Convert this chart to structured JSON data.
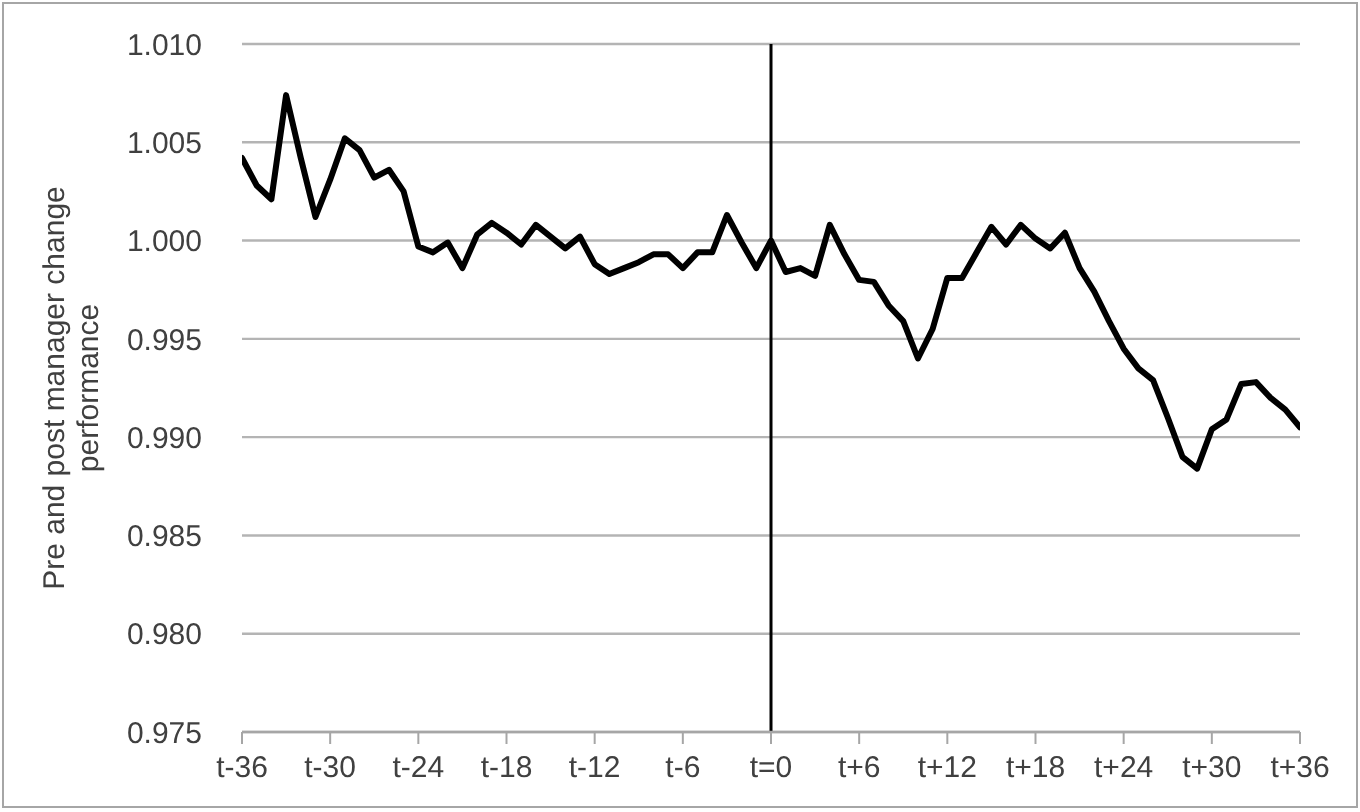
{
  "chart_data": {
    "type": "line",
    "ylabel": "Pre and post manager change performance",
    "categories": [
      "t-36",
      null,
      null,
      null,
      null,
      null,
      "t-30",
      null,
      null,
      null,
      null,
      null,
      "t-24",
      null,
      null,
      null,
      null,
      null,
      "t-18",
      null,
      null,
      null,
      null,
      null,
      "t-12",
      null,
      null,
      null,
      null,
      null,
      "t-6",
      null,
      null,
      null,
      null,
      null,
      "t=0",
      null,
      null,
      null,
      null,
      null,
      "t+6",
      null,
      null,
      null,
      null,
      null,
      "t+12",
      null,
      null,
      null,
      null,
      null,
      "t+18",
      null,
      null,
      null,
      null,
      null,
      "t+24",
      null,
      null,
      null,
      null,
      null,
      "t+30",
      null,
      null,
      null,
      null,
      null,
      "t+36"
    ],
    "values": [
      1.0042,
      1.0028,
      1.0021,
      1.0074,
      1.0042,
      1.0012,
      1.0031,
      1.0052,
      1.0046,
      1.0032,
      1.0036,
      1.0025,
      0.9997,
      0.9994,
      0.9999,
      0.9986,
      1.0003,
      1.0009,
      1.0004,
      0.9998,
      1.0008,
      1.0002,
      0.9996,
      1.0002,
      0.9988,
      0.9983,
      0.9986,
      0.9989,
      0.9993,
      0.9993,
      0.9986,
      0.9994,
      0.9994,
      1.0013,
      0.9999,
      0.9986,
      1.0,
      0.9984,
      0.9986,
      0.9982,
      1.0008,
      0.9993,
      0.998,
      0.9979,
      0.9967,
      0.9959,
      0.994,
      0.9955,
      0.9981,
      0.9981,
      0.9994,
      1.0007,
      0.9998,
      1.0008,
      1.0001,
      0.9996,
      1.0004,
      0.9986,
      0.9974,
      0.9959,
      0.9945,
      0.9935,
      0.9929,
      0.991,
      0.989,
      0.9884,
      0.9904,
      0.9909,
      0.9927,
      0.9928,
      0.992,
      0.9914,
      0.9905
    ],
    "color": "#000000",
    "ylim": [
      0.975,
      1.01
    ],
    "yticks": [
      0.975,
      {
        "value": 0.98,
        "label": "0.980"
      },
      0.985,
      {
        "value": 0.99,
        "label": "0.990"
      },
      0.995,
      {
        "value": 1.0,
        "label": "1.000"
      },
      1.005,
      {
        "value": 1.01,
        "label": "1.010"
      }
    ],
    "grid": "y",
    "ref_lines": [
      {
        "axis": "x",
        "value": "t=0",
        "color": "#000000"
      }
    ]
  }
}
